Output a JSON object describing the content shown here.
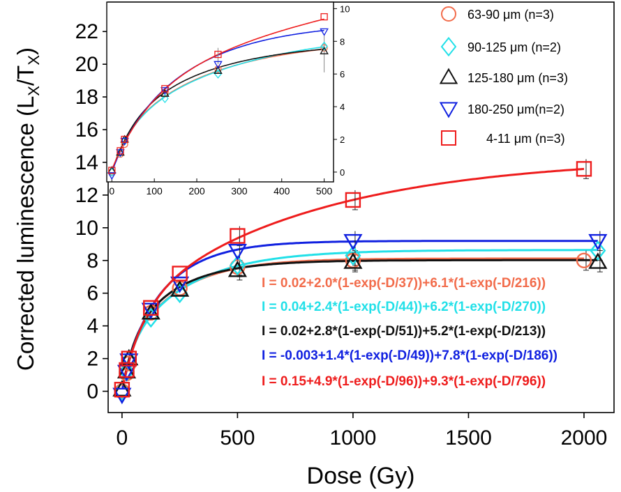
{
  "chart_data": [
    {
      "type": "scatter",
      "xlabel": "Dose (Gy)",
      "ylabel_main": "Corrected luminescence (L",
      "ylabel_sub1": "X",
      "ylabel_mid": "/T",
      "ylabel_sub2": "X",
      "ylabel_end": ")",
      "xlim": [
        -60,
        2130
      ],
      "ylim": [
        -1.3,
        23.8
      ],
      "xticks": [
        0,
        500,
        1000,
        1500,
        2000
      ],
      "yticks": [
        0,
        2,
        4,
        6,
        8,
        10,
        12,
        14,
        16,
        18,
        20,
        22
      ],
      "legend_position": "top-right",
      "series": [
        {
          "name": "63-90 μm (n=3)",
          "marker": "circle",
          "color": "#f26b4a",
          "x": [
            0,
            20,
            30,
            125,
            250,
            500,
            1000,
            2000
          ],
          "y": [
            0.0,
            1.1,
            1.7,
            4.8,
            6.3,
            7.6,
            8.0,
            8.0
          ],
          "fit": {
            "c": 0.02,
            "a1": 2.0,
            "d1": 37,
            "a2": 6.1,
            "d2": 216
          },
          "equation": "I = 0.02+2.0*(1-exp(-D/37))+6.1*(1-exp(-D/216))"
        },
        {
          "name": "90-125 μm (n=2)",
          "marker": "diamond",
          "color": "#22e0e8",
          "x": [
            0,
            20,
            30,
            125,
            250,
            500,
            1000,
            2060
          ],
          "y": [
            0.0,
            1.2,
            1.9,
            4.5,
            6.0,
            7.7,
            8.3,
            8.6
          ],
          "fit": {
            "c": 0.04,
            "a1": 2.4,
            "d1": 44,
            "a2": 6.2,
            "d2": 270
          },
          "equation": "I = 0.04+2.4*(1-exp(-D/44))+6.2*(1-exp(-D/270))"
        },
        {
          "name": "125-180 μm (n=3)",
          "marker": "triangle-up",
          "color": "#111111",
          "x": [
            0,
            20,
            30,
            125,
            250,
            500,
            1000,
            2060
          ],
          "y": [
            0.1,
            1.2,
            2.0,
            4.8,
            6.2,
            7.4,
            7.9,
            7.9
          ],
          "fit": {
            "c": 0.02,
            "a1": 2.8,
            "d1": 51,
            "a2": 5.2,
            "d2": 213
          },
          "equation": "I = 0.02+2.8*(1-exp(-D/51))+5.2*(1-exp(-D/213))"
        },
        {
          "name": "180-250 μm(n=2)",
          "marker": "triangle-down",
          "color": "#1020e0",
          "x": [
            0,
            20,
            30,
            125,
            250,
            500,
            1000,
            2060
          ],
          "y": [
            -0.2,
            1.2,
            1.9,
            5.0,
            6.6,
            8.6,
            9.2,
            9.2
          ],
          "fit": {
            "c": -0.003,
            "a1": 1.4,
            "d1": 49,
            "a2": 7.8,
            "d2": 186
          },
          "equation": "I = -0.003+1.4*(1-exp(-D/49))+7.8*(1-exp(-D/186))"
        },
        {
          "name": "4-11 μm (n=3)",
          "marker": "square",
          "color": "#ee1c1c",
          "x": [
            0,
            20,
            30,
            125,
            250,
            500,
            1000,
            2000
          ],
          "y": [
            0.1,
            1.3,
            2.0,
            5.1,
            7.2,
            9.5,
            11.7,
            13.6
          ],
          "fit": {
            "c": 0.15,
            "a1": 4.9,
            "d1": 96,
            "a2": 9.3,
            "d2": 796
          },
          "equation": "I = 0.15+4.9*(1-exp(-D/96))+9.3*(1-exp(-D/796))"
        }
      ]
    },
    {
      "type": "scatter",
      "title": "",
      "xlim": [
        -12,
        522
      ],
      "ylim": [
        -0.6,
        10.4
      ],
      "xticks": [
        0,
        100,
        200,
        300,
        400,
        500
      ],
      "yticks": [
        0,
        2,
        4,
        6,
        8,
        10
      ],
      "series_data": "inset shows 0-500 Gy region of the same five series"
    }
  ]
}
